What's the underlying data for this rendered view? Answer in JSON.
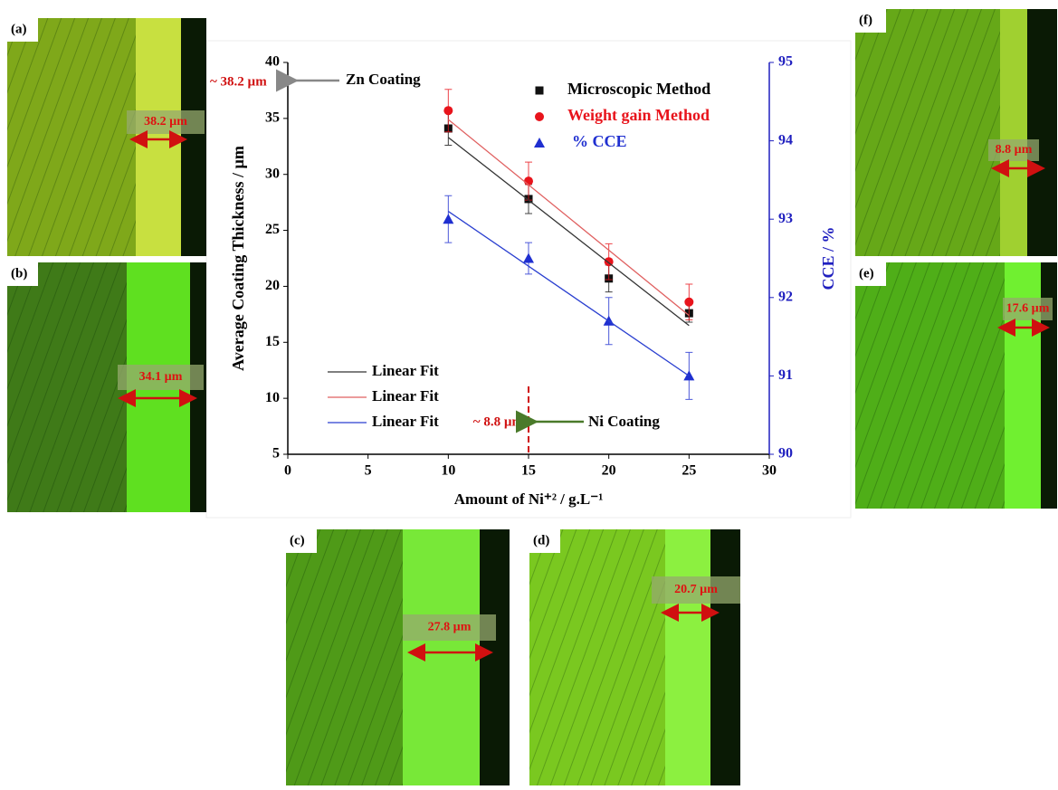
{
  "chart_data": {
    "type": "scatter",
    "xlabel": "Amount of Ni⁺² / g.L⁻¹",
    "ylabel": "Average Coating Thickness / µm",
    "y2label": "CCE / %",
    "xlim": [
      0,
      30
    ],
    "xticks": [
      0,
      5,
      10,
      15,
      20,
      25,
      30
    ],
    "ylim": [
      5,
      40
    ],
    "yticks": [
      5,
      10,
      15,
      20,
      25,
      30,
      35,
      40
    ],
    "y2lim": [
      90,
      95
    ],
    "y2ticks": [
      90,
      91,
      92,
      93,
      94,
      95
    ],
    "y2color": "#1f1fbf",
    "series": [
      {
        "name": "Microscopic Method",
        "color": "#111111",
        "marker": "square",
        "x": [
          10,
          15,
          20,
          25
        ],
        "values": [
          34.1,
          27.8,
          20.7,
          17.6
        ],
        "errors": [
          1.5,
          1.3,
          1.2,
          0.8
        ]
      },
      {
        "name": "Weight gain Method",
        "color": "#e8141c",
        "marker": "circle",
        "x": [
          10,
          15,
          20,
          25
        ],
        "values": [
          35.7,
          29.4,
          22.2,
          18.6
        ],
        "errors": [
          1.9,
          1.7,
          1.6,
          1.6
        ]
      },
      {
        "name": "% CCE",
        "color": "#1f2fd0",
        "marker": "triangle",
        "axis": "y2",
        "x": [
          10,
          15,
          20,
          25
        ],
        "values": [
          93.0,
          92.5,
          91.7,
          91.0
        ],
        "errors": [
          0.3,
          0.2,
          0.3,
          0.3
        ]
      },
      {
        "name": "Linear Fit",
        "color": "#333333",
        "marker": "line",
        "x": [
          10,
          25
        ],
        "values": [
          33.3,
          16.5
        ]
      },
      {
        "name": "Linear Fit",
        "color": "#e06060",
        "marker": "line",
        "x": [
          10,
          25
        ],
        "values": [
          34.9,
          17.4
        ]
      },
      {
        "name": "Linear Fit",
        "color": "#2a3fd0",
        "marker": "line",
        "axis": "y2",
        "x": [
          10,
          25
        ],
        "values": [
          93.1,
          91.0
        ]
      }
    ],
    "annotations": [
      {
        "text": "~ 38.2 µm",
        "arrow_label": "Zn Coating",
        "y": 38.2
      },
      {
        "text": "~ 8.8 µm",
        "arrow_label": "Ni Coating",
        "x": 15
      }
    ]
  },
  "panels": [
    {
      "label": "(a)",
      "measurement": "38.2 µm"
    },
    {
      "label": "(b)",
      "measurement": "34.1 µm"
    },
    {
      "label": "(c)",
      "measurement": "27.8 µm"
    },
    {
      "label": "(d)",
      "measurement": "20.7 µm"
    },
    {
      "label": "(e)",
      "measurement": "17.6 µm"
    },
    {
      "label": "(f)",
      "measurement": "8.8 µm"
    }
  ]
}
